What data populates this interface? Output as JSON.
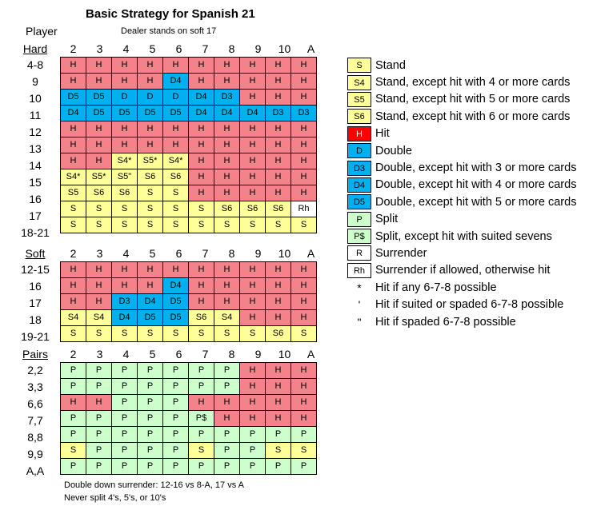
{
  "title": "Basic Strategy for Spanish 21",
  "player_label": "Player",
  "subtitle": "Dealer stands on soft 17",
  "dealer_cards": [
    "2",
    "3",
    "4",
    "5",
    "6",
    "7",
    "8",
    "9",
    "10",
    "A"
  ],
  "sections": [
    {
      "label": "Hard",
      "rows": [
        {
          "label": "4-8",
          "cells": [
            [
              "H",
              "H"
            ],
            [
              "H",
              "H"
            ],
            [
              "H",
              "H"
            ],
            [
              "H",
              "H"
            ],
            [
              "H",
              "H"
            ],
            [
              "H",
              "H"
            ],
            [
              "H",
              "H"
            ],
            [
              "H",
              "H"
            ],
            [
              "H",
              "H"
            ],
            [
              "H",
              "H"
            ]
          ]
        },
        {
          "label": "9",
          "cells": [
            [
              "H",
              "H"
            ],
            [
              "H",
              "H"
            ],
            [
              "H",
              "H"
            ],
            [
              "H",
              "H"
            ],
            [
              "D4",
              "D"
            ],
            [
              "H",
              "H"
            ],
            [
              "H",
              "H"
            ],
            [
              "H",
              "H"
            ],
            [
              "H",
              "H"
            ],
            [
              "H",
              "H"
            ]
          ]
        },
        {
          "label": "10",
          "cells": [
            [
              "D5",
              "D"
            ],
            [
              "D5",
              "D"
            ],
            [
              "D",
              "D"
            ],
            [
              "D",
              "D"
            ],
            [
              "D",
              "D"
            ],
            [
              "D4",
              "D"
            ],
            [
              "D3",
              "D"
            ],
            [
              "H",
              "H"
            ],
            [
              "H",
              "H"
            ],
            [
              "H",
              "H"
            ]
          ]
        },
        {
          "label": "11",
          "cells": [
            [
              "D4",
              "D"
            ],
            [
              "D5",
              "D"
            ],
            [
              "D5",
              "D"
            ],
            [
              "D5",
              "D"
            ],
            [
              "D5",
              "D"
            ],
            [
              "D4",
              "D"
            ],
            [
              "D4",
              "D"
            ],
            [
              "D4",
              "D"
            ],
            [
              "D3",
              "D"
            ],
            [
              "D3",
              "D"
            ]
          ]
        },
        {
          "label": "12",
          "cells": [
            [
              "H",
              "H"
            ],
            [
              "H",
              "H"
            ],
            [
              "H",
              "H"
            ],
            [
              "H",
              "H"
            ],
            [
              "H",
              "H"
            ],
            [
              "H",
              "H"
            ],
            [
              "H",
              "H"
            ],
            [
              "H",
              "H"
            ],
            [
              "H",
              "H"
            ],
            [
              "H",
              "H"
            ]
          ]
        },
        {
          "label": "13",
          "cells": [
            [
              "H",
              "H"
            ],
            [
              "H",
              "H"
            ],
            [
              "H",
              "H"
            ],
            [
              "H",
              "H"
            ],
            [
              "H",
              "H"
            ],
            [
              "H",
              "H"
            ],
            [
              "H",
              "H"
            ],
            [
              "H",
              "H"
            ],
            [
              "H",
              "H"
            ],
            [
              "H",
              "H"
            ]
          ]
        },
        {
          "label": "14",
          "cells": [
            [
              "H",
              "H"
            ],
            [
              "H",
              "H"
            ],
            [
              "S4*",
              "S"
            ],
            [
              "S5*",
              "S"
            ],
            [
              "S4*",
              "S"
            ],
            [
              "H",
              "H"
            ],
            [
              "H",
              "H"
            ],
            [
              "H",
              "H"
            ],
            [
              "H",
              "H"
            ],
            [
              "H",
              "H"
            ]
          ]
        },
        {
          "label": "15",
          "cells": [
            [
              "S4*",
              "S"
            ],
            [
              "S5*",
              "S"
            ],
            [
              "S5\"",
              "S"
            ],
            [
              "S6",
              "S"
            ],
            [
              "S6",
              "S"
            ],
            [
              "H",
              "H"
            ],
            [
              "H",
              "H"
            ],
            [
              "H",
              "H"
            ],
            [
              "H",
              "H"
            ],
            [
              "H",
              "H"
            ]
          ]
        },
        {
          "label": "16",
          "cells": [
            [
              "S5",
              "S"
            ],
            [
              "S6",
              "S"
            ],
            [
              "S6",
              "S"
            ],
            [
              "S",
              "S"
            ],
            [
              "S",
              "S"
            ],
            [
              "H",
              "H"
            ],
            [
              "H",
              "H"
            ],
            [
              "H",
              "H"
            ],
            [
              "H",
              "H"
            ],
            [
              "H",
              "H"
            ]
          ]
        },
        {
          "label": "17",
          "cells": [
            [
              "S",
              "S"
            ],
            [
              "S",
              "S"
            ],
            [
              "S",
              "S"
            ],
            [
              "S",
              "S"
            ],
            [
              "S",
              "S"
            ],
            [
              "S",
              "S"
            ],
            [
              "S6",
              "S"
            ],
            [
              "S6",
              "S"
            ],
            [
              "S6",
              "S"
            ],
            [
              "Rh",
              "W"
            ]
          ]
        },
        {
          "label": "18-21",
          "cells": [
            [
              "S",
              "S"
            ],
            [
              "S",
              "S"
            ],
            [
              "S",
              "S"
            ],
            [
              "S",
              "S"
            ],
            [
              "S",
              "S"
            ],
            [
              "S",
              "S"
            ],
            [
              "S",
              "S"
            ],
            [
              "S",
              "S"
            ],
            [
              "S",
              "S"
            ],
            [
              "S",
              "S"
            ]
          ]
        }
      ]
    },
    {
      "label": "Soft",
      "rows": [
        {
          "label": "12-15",
          "cells": [
            [
              "H",
              "H"
            ],
            [
              "H",
              "H"
            ],
            [
              "H",
              "H"
            ],
            [
              "H",
              "H"
            ],
            [
              "H",
              "H"
            ],
            [
              "H",
              "H"
            ],
            [
              "H",
              "H"
            ],
            [
              "H",
              "H"
            ],
            [
              "H",
              "H"
            ],
            [
              "H",
              "H"
            ]
          ]
        },
        {
          "label": "16",
          "cells": [
            [
              "H",
              "H"
            ],
            [
              "H",
              "H"
            ],
            [
              "H",
              "H"
            ],
            [
              "H",
              "H"
            ],
            [
              "D4",
              "D"
            ],
            [
              "H",
              "H"
            ],
            [
              "H",
              "H"
            ],
            [
              "H",
              "H"
            ],
            [
              "H",
              "H"
            ],
            [
              "H",
              "H"
            ]
          ]
        },
        {
          "label": "17",
          "cells": [
            [
              "H",
              "H"
            ],
            [
              "H",
              "H"
            ],
            [
              "D3",
              "D"
            ],
            [
              "D4",
              "D"
            ],
            [
              "D5",
              "D"
            ],
            [
              "H",
              "H"
            ],
            [
              "H",
              "H"
            ],
            [
              "H",
              "H"
            ],
            [
              "H",
              "H"
            ],
            [
              "H",
              "H"
            ]
          ]
        },
        {
          "label": "18",
          "cells": [
            [
              "S4",
              "S"
            ],
            [
              "S4",
              "S"
            ],
            [
              "D4",
              "D"
            ],
            [
              "D5",
              "D"
            ],
            [
              "D5",
              "D"
            ],
            [
              "S6",
              "S"
            ],
            [
              "S4",
              "S"
            ],
            [
              "H",
              "H"
            ],
            [
              "H",
              "H"
            ],
            [
              "H",
              "H"
            ]
          ]
        },
        {
          "label": "19-21",
          "cells": [
            [
              "S",
              "S"
            ],
            [
              "S",
              "S"
            ],
            [
              "S",
              "S"
            ],
            [
              "S",
              "S"
            ],
            [
              "S",
              "S"
            ],
            [
              "S",
              "S"
            ],
            [
              "S",
              "S"
            ],
            [
              "S",
              "S"
            ],
            [
              "S6",
              "S"
            ],
            [
              "S",
              "S"
            ]
          ]
        }
      ]
    },
    {
      "label": "Pairs",
      "rows": [
        {
          "label": "2,2",
          "cells": [
            [
              "P",
              "P"
            ],
            [
              "P",
              "P"
            ],
            [
              "P",
              "P"
            ],
            [
              "P",
              "P"
            ],
            [
              "P",
              "P"
            ],
            [
              "P",
              "P"
            ],
            [
              "P",
              "P"
            ],
            [
              "H",
              "H"
            ],
            [
              "H",
              "H"
            ],
            [
              "H",
              "H"
            ]
          ]
        },
        {
          "label": "3,3",
          "cells": [
            [
              "P",
              "P"
            ],
            [
              "P",
              "P"
            ],
            [
              "P",
              "P"
            ],
            [
              "P",
              "P"
            ],
            [
              "P",
              "P"
            ],
            [
              "P",
              "P"
            ],
            [
              "P",
              "P"
            ],
            [
              "H",
              "H"
            ],
            [
              "H",
              "H"
            ],
            [
              "H",
              "H"
            ]
          ]
        },
        {
          "label": "6,6",
          "cells": [
            [
              "H",
              "H"
            ],
            [
              "H",
              "H"
            ],
            [
              "P",
              "P"
            ],
            [
              "P",
              "P"
            ],
            [
              "P",
              "P"
            ],
            [
              "H",
              "H"
            ],
            [
              "H",
              "H"
            ],
            [
              "H",
              "H"
            ],
            [
              "H",
              "H"
            ],
            [
              "H",
              "H"
            ]
          ]
        },
        {
          "label": "7,7",
          "cells": [
            [
              "P",
              "P"
            ],
            [
              "P",
              "P"
            ],
            [
              "P",
              "P"
            ],
            [
              "P",
              "P"
            ],
            [
              "P",
              "P"
            ],
            [
              "P$",
              "P"
            ],
            [
              "H",
              "H"
            ],
            [
              "H",
              "H"
            ],
            [
              "H",
              "H"
            ],
            [
              "H",
              "H"
            ]
          ]
        },
        {
          "label": "8,8",
          "cells": [
            [
              "P",
              "P"
            ],
            [
              "P",
              "P"
            ],
            [
              "P",
              "P"
            ],
            [
              "P",
              "P"
            ],
            [
              "P",
              "P"
            ],
            [
              "P",
              "P"
            ],
            [
              "P",
              "P"
            ],
            [
              "P",
              "P"
            ],
            [
              "P",
              "P"
            ],
            [
              "P",
              "P"
            ]
          ]
        },
        {
          "label": "9,9",
          "cells": [
            [
              "S",
              "S"
            ],
            [
              "P",
              "P"
            ],
            [
              "P",
              "P"
            ],
            [
              "P",
              "P"
            ],
            [
              "P",
              "P"
            ],
            [
              "S",
              "S"
            ],
            [
              "P",
              "P"
            ],
            [
              "P",
              "P"
            ],
            [
              "S",
              "S"
            ],
            [
              "S",
              "S"
            ]
          ]
        },
        {
          "label": "A,A",
          "cells": [
            [
              "P",
              "P"
            ],
            [
              "P",
              "P"
            ],
            [
              "P",
              "P"
            ],
            [
              "P",
              "P"
            ],
            [
              "P",
              "P"
            ],
            [
              "P",
              "P"
            ],
            [
              "P",
              "P"
            ],
            [
              "P",
              "P"
            ],
            [
              "P",
              "P"
            ],
            [
              "P",
              "P"
            ]
          ]
        }
      ]
    }
  ],
  "legend": [
    {
      "code": "S",
      "color": "S",
      "text": "Stand"
    },
    {
      "code": "S4",
      "color": "S",
      "text": "Stand, except hit with 4 or more cards"
    },
    {
      "code": "S5",
      "color": "S",
      "text": "Stand, except hit with 5 or more cards"
    },
    {
      "code": "S6",
      "color": "S",
      "text": "Stand, except hit with 6 or more cards"
    },
    {
      "code": "H",
      "color": "R",
      "text": "Hit"
    },
    {
      "code": "D",
      "color": "D",
      "text": "Double"
    },
    {
      "code": "D3",
      "color": "D",
      "text": "Double, except hit with 3 or more cards"
    },
    {
      "code": "D4",
      "color": "D",
      "text": "Double, except hit with 4 or more cards"
    },
    {
      "code": "D5",
      "color": "D",
      "text": "Double, except hit with 5 or more cards"
    },
    {
      "code": "P",
      "color": "P",
      "text": "Split"
    },
    {
      "code": "P$",
      "color": "P",
      "text": "Split, except hit with suited sevens"
    },
    {
      "code": "R",
      "color": "W",
      "text": "Surrender"
    },
    {
      "code": "Rh",
      "color": "W",
      "text": "Surrender if allowed, otherwise hit"
    }
  ],
  "notes": [
    {
      "symbol": "*",
      "text": "Hit if any 6-7-8 possible"
    },
    {
      "symbol": "'",
      "text": "Hit if suited or spaded 6-7-8 possible"
    },
    {
      "symbol": "\"",
      "text": "Hit if spaded 6-7-8 possible"
    }
  ],
  "colors": {
    "H": "#f4828a",
    "D": "#00b0f0",
    "S": "#ffff99",
    "P": "#ccffcc",
    "W": "#ffffff",
    "R": "#ff0000"
  },
  "footer": {
    "line1": "Double down surrender:  12-16 vs 8-A, 17 vs A",
    "line2": "Never split 4's, 5's, or 10's"
  }
}
